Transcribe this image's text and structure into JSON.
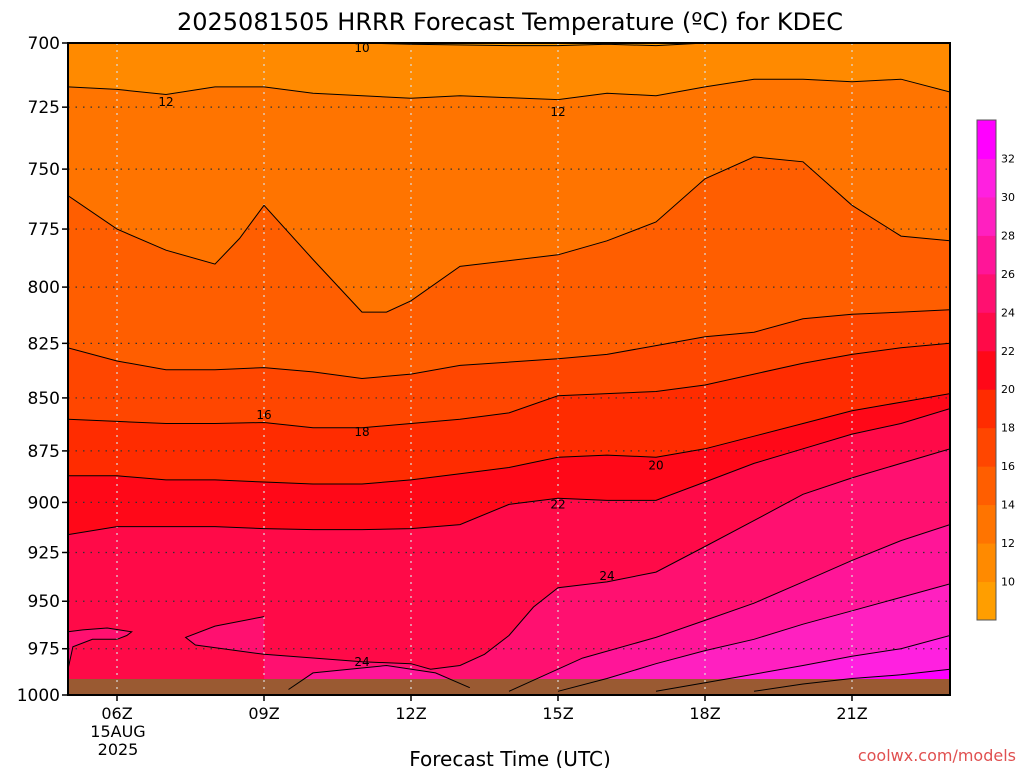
{
  "chart_data": {
    "type": "heatmap",
    "title": "2025081505 HRRR Forecast Temperature (ºC) for KDEC",
    "xlabel": "Forecast Time (UTC)",
    "ylabel": "",
    "x_ticks": [
      "06Z",
      "09Z",
      "12Z",
      "15Z",
      "18Z",
      "21Z"
    ],
    "x_tick_hours": [
      6,
      9,
      12,
      15,
      18,
      21
    ],
    "x_range_hours": [
      5,
      23
    ],
    "x_date_label": "15AUG",
    "x_year_label": "2025",
    "y_ticks": [
      700,
      725,
      750,
      775,
      800,
      825,
      850,
      875,
      900,
      925,
      950,
      975,
      1000
    ],
    "y_range_hpa": [
      700,
      1000
    ],
    "y_axis": "pressure (hPa), inverted, log-scaled",
    "grid": true,
    "colorbar": {
      "position": "right",
      "levels": [
        8,
        10,
        12,
        14,
        16,
        18,
        20,
        22,
        24,
        26,
        28,
        30,
        32,
        34
      ],
      "tick_labels": [
        "10",
        "12",
        "14",
        "16",
        "18",
        "20",
        "22",
        "24",
        "26",
        "28",
        "30",
        "32"
      ],
      "colors": [
        "#FF9E00",
        "#FF8A00",
        "#FF7400",
        "#FF5E00",
        "#FF4600",
        "#FF2C00",
        "#FF0818",
        "#FF0A48",
        "#FF1070",
        "#FF1598",
        "#FF20C0",
        "#FF20E0",
        "#FF00FF"
      ]
    },
    "contour_labels": [
      {
        "text": "10",
        "hour": 11,
        "pressure": 702
      },
      {
        "text": "12",
        "hour": 7,
        "pressure": 723
      },
      {
        "text": "12",
        "hour": 15,
        "pressure": 727
      },
      {
        "text": "16",
        "hour": 9,
        "pressure": 858
      },
      {
        "text": "18",
        "hour": 11,
        "pressure": 866
      },
      {
        "text": "20",
        "hour": 17,
        "pressure": 882
      },
      {
        "text": "22",
        "hour": 15,
        "pressure": 901
      },
      {
        "text": "24",
        "hour": 16,
        "pressure": 937
      },
      {
        "text": "24",
        "hour": 11,
        "pressure": 982
      }
    ],
    "isotherms": [
      {
        "level": 10,
        "points": [
          [
            5,
            699
          ],
          [
            7,
            699
          ],
          [
            9,
            699
          ],
          [
            10,
            699.5
          ],
          [
            12,
            700.5
          ],
          [
            14,
            701
          ],
          [
            15,
            701
          ],
          [
            16,
            700.5
          ],
          [
            17,
            701
          ],
          [
            18,
            700
          ],
          [
            19,
            699
          ],
          [
            23,
            699
          ]
        ]
      },
      {
        "level": 12,
        "points": [
          [
            5,
            717
          ],
          [
            6,
            718
          ],
          [
            7,
            720
          ],
          [
            8,
            717
          ],
          [
            9,
            717
          ],
          [
            10,
            719.5
          ],
          [
            12,
            721.5
          ],
          [
            13,
            720.5
          ],
          [
            15,
            722
          ],
          [
            16,
            719.5
          ],
          [
            17,
            720.5
          ],
          [
            18,
            717
          ],
          [
            19,
            714
          ],
          [
            20,
            714
          ],
          [
            21,
            715
          ],
          [
            22,
            714
          ],
          [
            23,
            719
          ]
        ]
      },
      {
        "level": 14,
        "points": [
          [
            5,
            761
          ],
          [
            6,
            775
          ],
          [
            7,
            784
          ],
          [
            8,
            790
          ],
          [
            8.5,
            779
          ],
          [
            9,
            765
          ],
          [
            10,
            788
          ],
          [
            11,
            811
          ],
          [
            11.5,
            811
          ],
          [
            12,
            806
          ],
          [
            13,
            791
          ],
          [
            15,
            786
          ],
          [
            16,
            780
          ],
          [
            17,
            772
          ],
          [
            18,
            754
          ],
          [
            19,
            745
          ],
          [
            20,
            747
          ],
          [
            21,
            765
          ],
          [
            22,
            778
          ],
          [
            23,
            780
          ]
        ]
      },
      {
        "level": 16,
        "points": [
          [
            5,
            827
          ],
          [
            6,
            833
          ],
          [
            7,
            837
          ],
          [
            8,
            837
          ],
          [
            9,
            836
          ],
          [
            10,
            838
          ],
          [
            11,
            841
          ],
          [
            12,
            839
          ],
          [
            13,
            835
          ],
          [
            15,
            832
          ],
          [
            16,
            830
          ],
          [
            17,
            826
          ],
          [
            18,
            822
          ],
          [
            19,
            820
          ],
          [
            20,
            814
          ],
          [
            21,
            812
          ],
          [
            22,
            811
          ],
          [
            23,
            810
          ]
        ]
      },
      {
        "level": 18,
        "points": [
          [
            5,
            860
          ],
          [
            6,
            861
          ],
          [
            7,
            862
          ],
          [
            8,
            862
          ],
          [
            9,
            861.5
          ],
          [
            10,
            864
          ],
          [
            11,
            864
          ],
          [
            12,
            862
          ],
          [
            13,
            860
          ],
          [
            14,
            857
          ],
          [
            15,
            849
          ],
          [
            17,
            847
          ],
          [
            18,
            844
          ],
          [
            19,
            839
          ],
          [
            20,
            834
          ],
          [
            21,
            830
          ],
          [
            22,
            827
          ],
          [
            23,
            825
          ]
        ]
      },
      {
        "level": 20,
        "points": [
          [
            5,
            887
          ],
          [
            6,
            887
          ],
          [
            7,
            889
          ],
          [
            8,
            889
          ],
          [
            9,
            890
          ],
          [
            10,
            891
          ],
          [
            11,
            891
          ],
          [
            12,
            889
          ],
          [
            13,
            886
          ],
          [
            14,
            883
          ],
          [
            15,
            878
          ],
          [
            16,
            877
          ],
          [
            17,
            878
          ],
          [
            18,
            874
          ],
          [
            19,
            868
          ],
          [
            20,
            862
          ],
          [
            21,
            856
          ],
          [
            22,
            852
          ],
          [
            23,
            848
          ]
        ]
      },
      {
        "level": 22,
        "points": [
          [
            5,
            916
          ],
          [
            6,
            912
          ],
          [
            7,
            912
          ],
          [
            8,
            912
          ],
          [
            9,
            913
          ],
          [
            10,
            913.5
          ],
          [
            11,
            913.5
          ],
          [
            12,
            913
          ],
          [
            13,
            911
          ],
          [
            14,
            901
          ],
          [
            15,
            898
          ],
          [
            16,
            899
          ],
          [
            17,
            899
          ],
          [
            18,
            890
          ],
          [
            19,
            881
          ],
          [
            20,
            874
          ],
          [
            21,
            867
          ],
          [
            22,
            862
          ],
          [
            23,
            855
          ]
        ]
      },
      {
        "level": 24,
        "points": [
          [
            5,
            986
          ],
          [
            5.1,
            974
          ],
          [
            5.5,
            970
          ],
          [
            6,
            970
          ],
          [
            6.2,
            968
          ],
          [
            6.3,
            966
          ],
          [
            5.8,
            964
          ],
          [
            5.3,
            965
          ],
          [
            5,
            966
          ]
        ]
      },
      {
        "level": 24,
        "points": [
          [
            9,
            958
          ],
          [
            8,
            963
          ],
          [
            7.4,
            969
          ],
          [
            7.6,
            973
          ],
          [
            9,
            978
          ],
          [
            11,
            982
          ],
          [
            12,
            983
          ],
          [
            12.4,
            986
          ],
          [
            13,
            984
          ],
          [
            13.5,
            978
          ],
          [
            14,
            968
          ],
          [
            14.5,
            953
          ],
          [
            15,
            943
          ],
          [
            16,
            940
          ],
          [
            17,
            935
          ],
          [
            18,
            922
          ],
          [
            19,
            909
          ],
          [
            20,
            896
          ],
          [
            21,
            888
          ],
          [
            22,
            881
          ],
          [
            23,
            874
          ]
        ]
      },
      {
        "level": 26,
        "points": [
          [
            9.5,
            997
          ],
          [
            10,
            988
          ],
          [
            11.5,
            984
          ],
          [
            12.5,
            988
          ],
          [
            13.2,
            996
          ]
        ]
      },
      {
        "level": 26,
        "points": [
          [
            14,
            998
          ],
          [
            15.5,
            980
          ],
          [
            17,
            969
          ],
          [
            18,
            960
          ],
          [
            19,
            951
          ],
          [
            20,
            940
          ],
          [
            21,
            929
          ],
          [
            22,
            919
          ],
          [
            23,
            911
          ]
        ]
      },
      {
        "level": 28,
        "points": [
          [
            15,
            998
          ],
          [
            16,
            991
          ],
          [
            17,
            983
          ],
          [
            18,
            976
          ],
          [
            19,
            970
          ],
          [
            20,
            962
          ],
          [
            21,
            955
          ],
          [
            22,
            948
          ],
          [
            23,
            941
          ]
        ]
      },
      {
        "level": 30,
        "points": [
          [
            17,
            998
          ],
          [
            18.5,
            991
          ],
          [
            20,
            984
          ],
          [
            21,
            979
          ],
          [
            22,
            975
          ],
          [
            23,
            968
          ]
        ]
      },
      {
        "level": 32,
        "points": [
          [
            19,
            998
          ],
          [
            20,
            994
          ],
          [
            21,
            991
          ],
          [
            22,
            989
          ],
          [
            23,
            986
          ]
        ]
      }
    ]
  },
  "credit": "coolwx.com/models"
}
